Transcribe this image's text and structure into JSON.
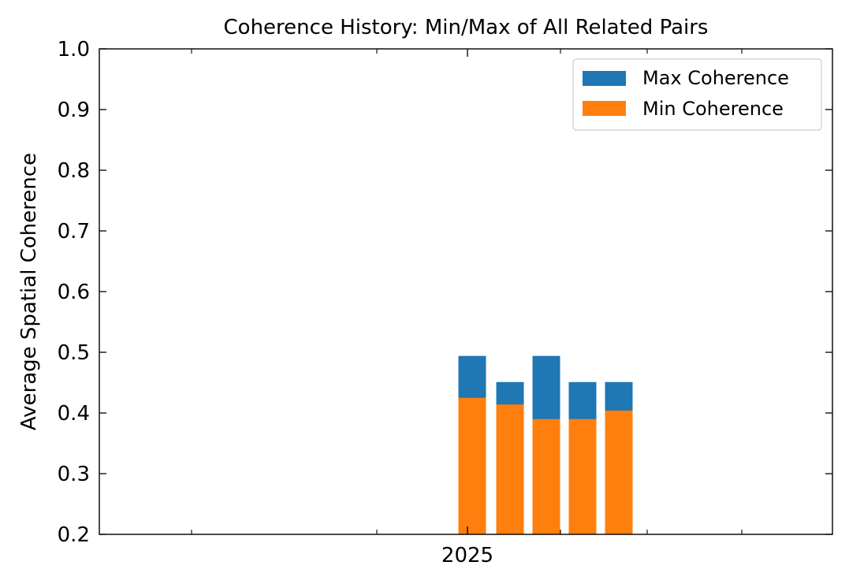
{
  "chart_data": {
    "type": "bar",
    "title": "Coherence History: Min/Max of All Related Pairs",
    "xlabel": "",
    "ylabel": "Average Spatial Coherence",
    "x_tick_labels": [
      "2025"
    ],
    "y_ticks": [
      "0.2",
      "0.3",
      "0.4",
      "0.5",
      "0.6",
      "0.7",
      "0.8",
      "0.9",
      "1.0"
    ],
    "ylim": [
      0.2,
      1.0
    ],
    "grid": false,
    "legend_position": "top-right",
    "series": [
      {
        "name": "Max Coherence",
        "color": "#1f77b4",
        "values": [
          0.494,
          0.451,
          0.494,
          0.451,
          0.451
        ]
      },
      {
        "name": "Min Coherence",
        "color": "#ff7f0e",
        "values": [
          0.425,
          0.414,
          0.39,
          0.39,
          0.404
        ]
      }
    ]
  }
}
